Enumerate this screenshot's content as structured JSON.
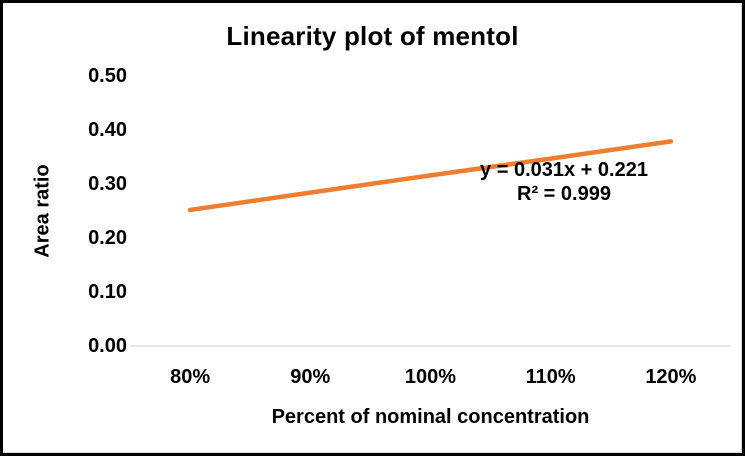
{
  "chart_data": {
    "type": "line",
    "title": "Linearity plot of mentol",
    "xlabel": "Percent of nominal concentration",
    "ylabel": "Area ratio",
    "categories": [
      "80%",
      "90%",
      "100%",
      "110%",
      "120%"
    ],
    "series": [
      {
        "name": "mentol",
        "values": [
          0.252,
          0.284,
          0.316,
          0.347,
          0.379
        ],
        "color": "#ED7D31"
      }
    ],
    "y_ticks": [
      "0.00",
      "0.10",
      "0.20",
      "0.30",
      "0.40",
      "0.50"
    ],
    "ylim": [
      0,
      0.5
    ],
    "grid": false,
    "legend": "none",
    "axis_line_color": "#D9D9D9",
    "text_color": "#000000",
    "annotation": {
      "equation": "y = 0.031x + 0.221",
      "r_squared": "R² = 0.999"
    }
  }
}
